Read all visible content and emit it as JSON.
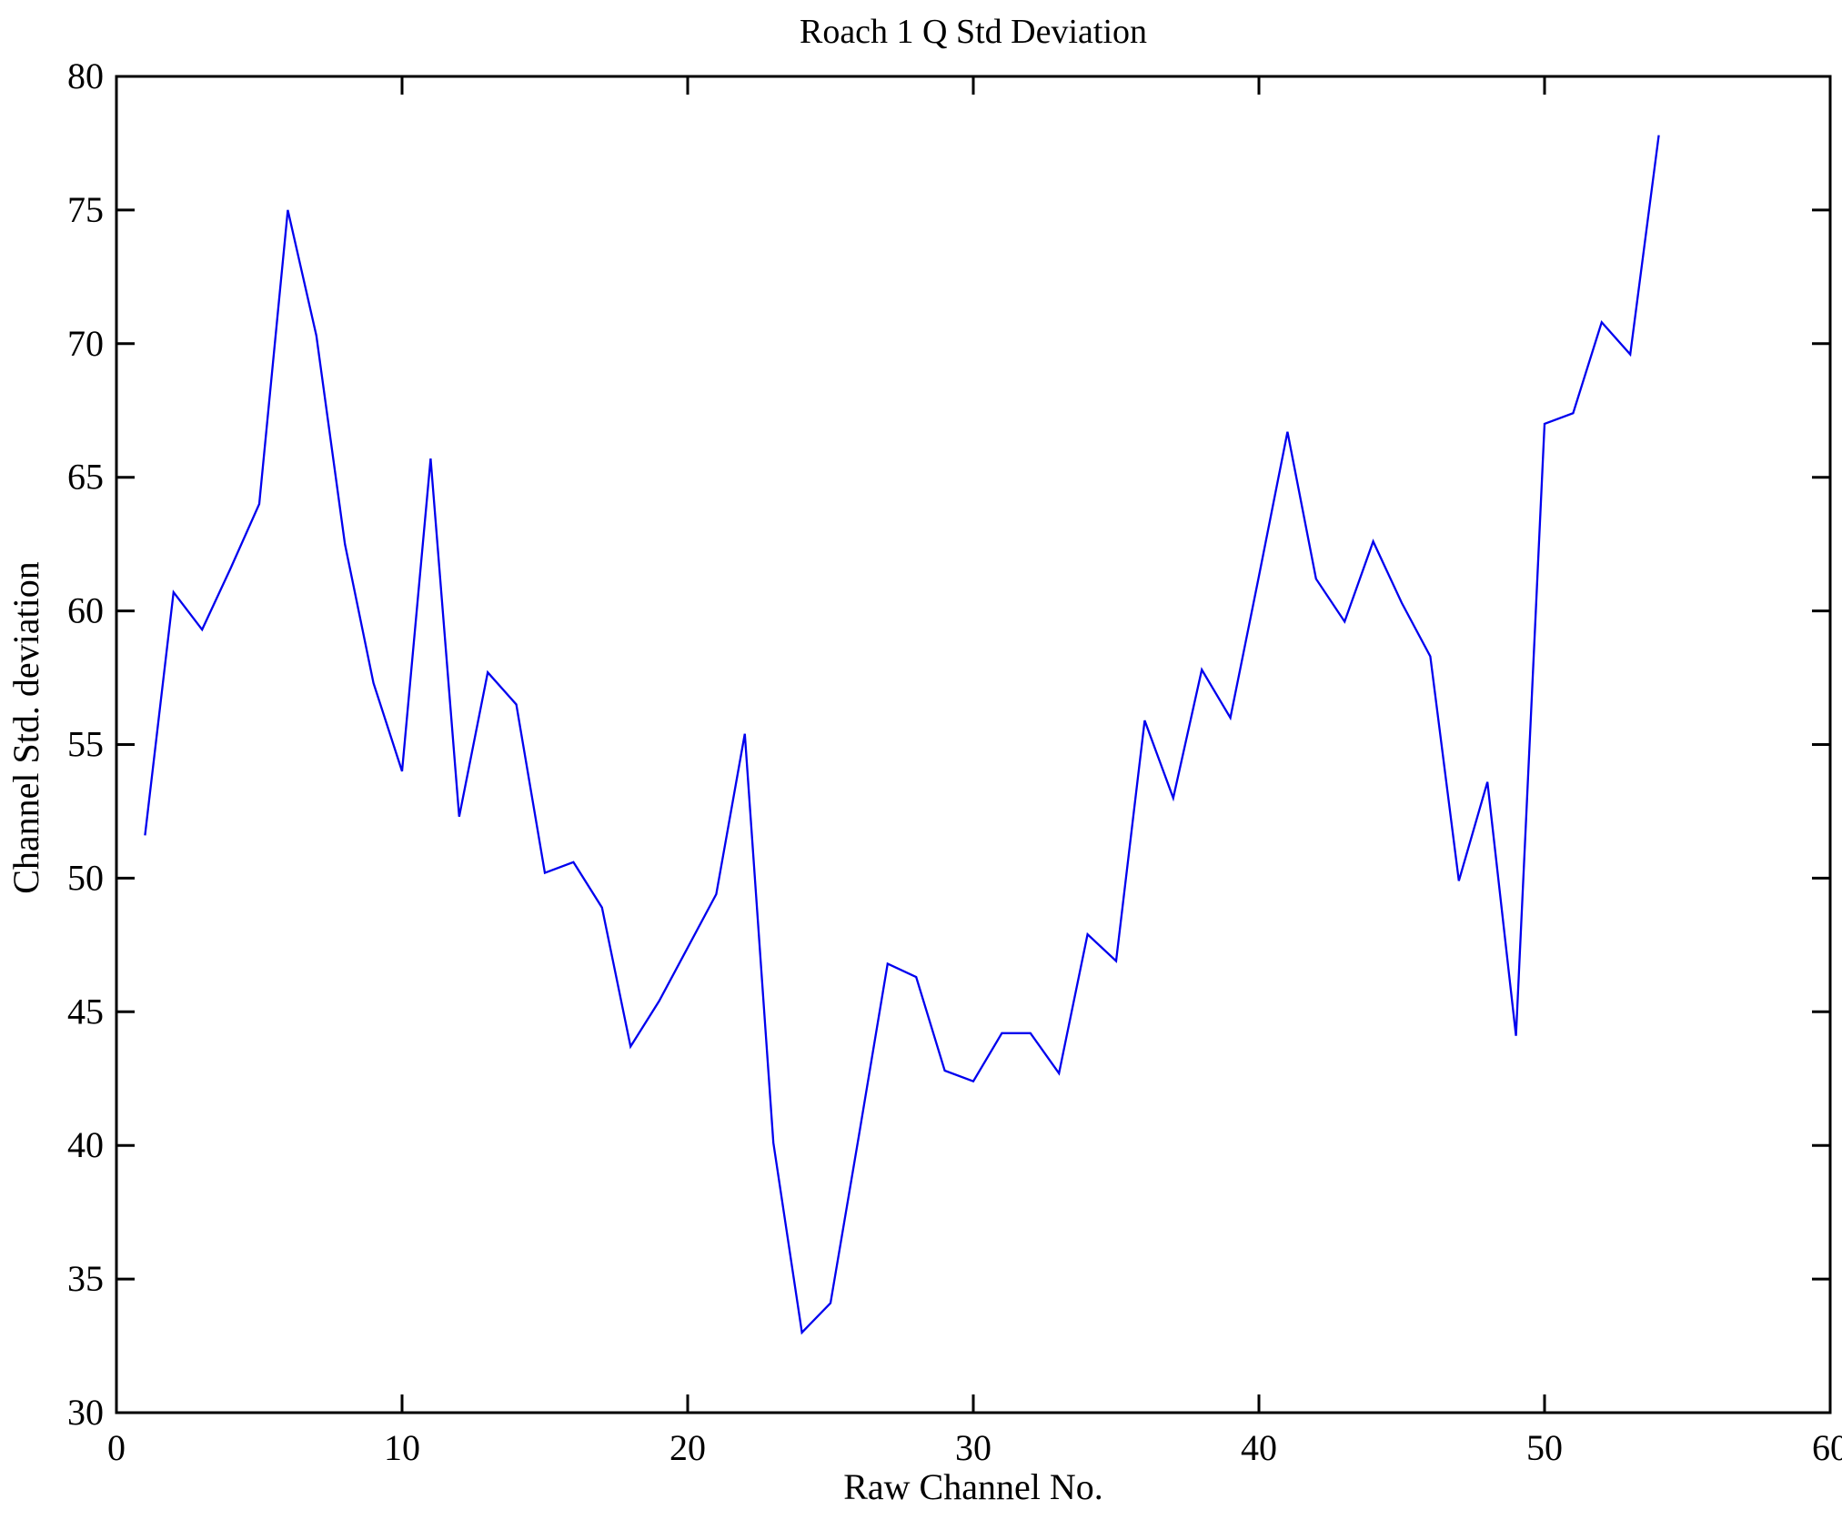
{
  "page": {
    "background": "#ffffff"
  },
  "chart_data": {
    "type": "line",
    "title": "Roach 1 Q Std Deviation",
    "xlabel": "Raw Channel No.",
    "ylabel": "Channel Std. deviation",
    "xlim": [
      0,
      60
    ],
    "ylim": [
      30,
      80
    ],
    "xticks": [
      0,
      10,
      20,
      30,
      40,
      50,
      60
    ],
    "yticks": [
      30,
      35,
      40,
      45,
      50,
      55,
      60,
      65,
      70,
      75,
      80
    ],
    "grid": false,
    "legend": null,
    "box": true,
    "line_color": "#0000EE",
    "axis_color": "#000000",
    "x": [
      1,
      2,
      3,
      4,
      5,
      6,
      7,
      8,
      9,
      10,
      11,
      12,
      13,
      14,
      15,
      16,
      17,
      18,
      19,
      20,
      21,
      22,
      23,
      24,
      25,
      26,
      27,
      28,
      29,
      30,
      31,
      32,
      33,
      34,
      35,
      36,
      37,
      38,
      39,
      40,
      41,
      42,
      43,
      44,
      45,
      46,
      47,
      48,
      49,
      50,
      51,
      52,
      53,
      54
    ],
    "values": [
      51.6,
      60.7,
      59.3,
      61.6,
      64.0,
      75.0,
      70.3,
      62.5,
      57.3,
      54.0,
      65.7,
      52.3,
      57.7,
      56.5,
      50.2,
      50.6,
      48.9,
      43.7,
      45.4,
      47.4,
      49.4,
      55.4,
      40.1,
      33.0,
      34.1,
      40.4,
      46.8,
      46.3,
      42.8,
      42.4,
      44.2,
      44.2,
      42.7,
      47.9,
      46.9,
      55.9,
      53.0,
      57.8,
      56.0,
      61.3,
      66.7,
      61.2,
      59.6,
      62.6,
      60.3,
      58.3,
      49.9,
      53.6,
      44.1,
      67.0,
      67.4,
      70.8,
      69.6,
      77.8
    ]
  }
}
